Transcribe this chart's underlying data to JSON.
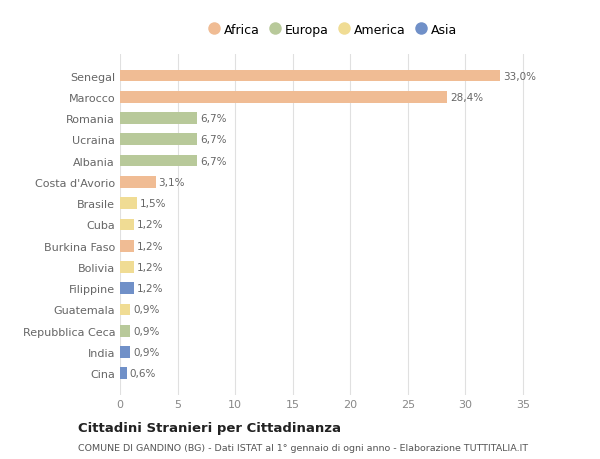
{
  "categories": [
    "Senegal",
    "Marocco",
    "Romania",
    "Ucraina",
    "Albania",
    "Costa d'Avorio",
    "Brasile",
    "Cuba",
    "Burkina Faso",
    "Bolivia",
    "Filippine",
    "Guatemala",
    "Repubblica Ceca",
    "India",
    "Cina"
  ],
  "values": [
    33.0,
    28.4,
    6.7,
    6.7,
    6.7,
    3.1,
    1.5,
    1.2,
    1.2,
    1.2,
    1.2,
    0.9,
    0.9,
    0.9,
    0.6
  ],
  "labels": [
    "33,0%",
    "28,4%",
    "6,7%",
    "6,7%",
    "6,7%",
    "3,1%",
    "1,5%",
    "1,2%",
    "1,2%",
    "1,2%",
    "1,2%",
    "0,9%",
    "0,9%",
    "0,9%",
    "0,6%"
  ],
  "continent": [
    "Africa",
    "Africa",
    "Europa",
    "Europa",
    "Europa",
    "Africa",
    "America",
    "America",
    "Africa",
    "America",
    "Asia",
    "America",
    "Europa",
    "Asia",
    "Asia"
  ],
  "colors": {
    "Africa": "#F0BC94",
    "Europa": "#B8C99A",
    "America": "#F0DC94",
    "Asia": "#7090C8"
  },
  "title": "Cittadini Stranieri per Cittadinanza",
  "subtitle": "COMUNE DI GANDINO (BG) - Dati ISTAT al 1° gennaio di ogni anno - Elaborazione TUTTITALIA.IT",
  "xlim": [
    0,
    37
  ],
  "xticks": [
    0,
    5,
    10,
    15,
    20,
    25,
    30,
    35
  ],
  "background_color": "#ffffff",
  "plot_bg_color": "#ffffff",
  "bar_height": 0.55
}
